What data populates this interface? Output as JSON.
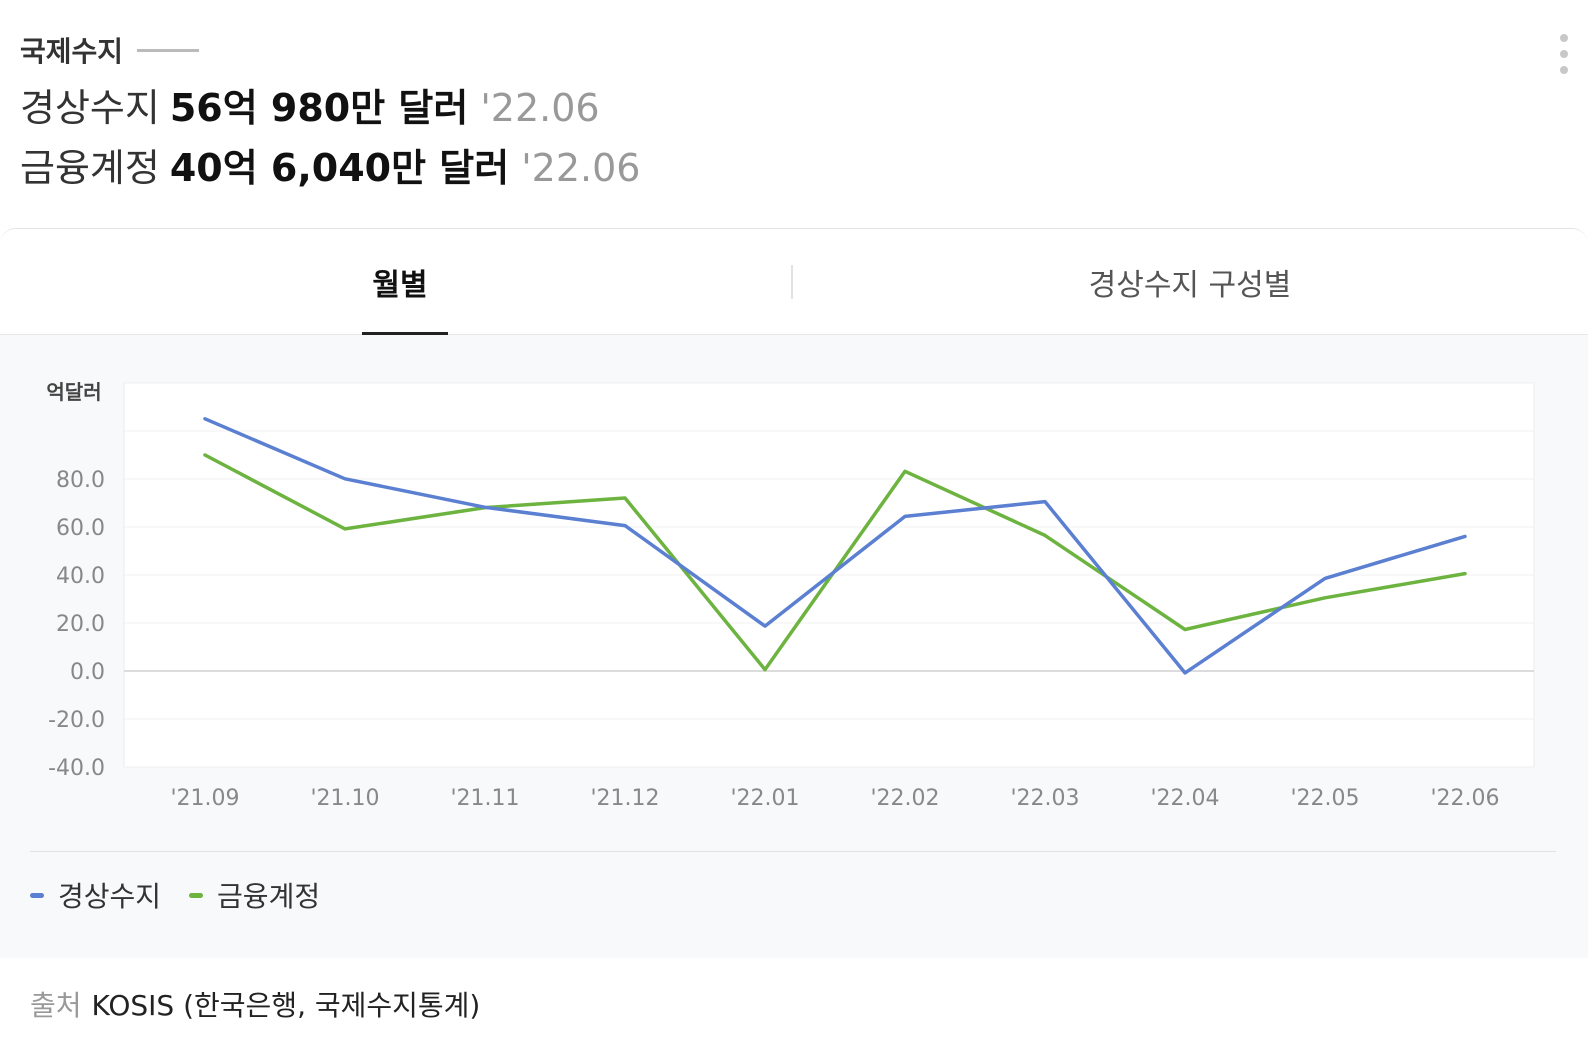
{
  "header": {
    "section_title": "국제수지",
    "stats": [
      {
        "label": "경상수지",
        "value": "56억 980만 달러",
        "date": "'22.06"
      },
      {
        "label": "금융계정",
        "value": "40억 6,040만 달러",
        "date": "'22.06"
      }
    ]
  },
  "tabs": [
    {
      "label": "월별",
      "active": true
    },
    {
      "label": "경상수지 구성별",
      "active": false
    }
  ],
  "chart_data": {
    "type": "line",
    "ylabel": "억달러",
    "x": [
      "'21.09",
      "'21.10",
      "'21.11",
      "'21.12",
      "'22.01",
      "'22.02",
      "'22.03",
      "'22.04",
      "'22.05",
      "'22.06"
    ],
    "yticks": [
      "80.0",
      "60.0",
      "40.0",
      "20.0",
      "0.0",
      "-20.0",
      "-40.0"
    ],
    "ylim": [
      -40,
      120
    ],
    "grid": true,
    "legend_position": "bottom-left",
    "series": [
      {
        "name": "경상수지",
        "color": "#5b7fd1",
        "values": [
          105.1,
          80.1,
          68.2,
          60.6,
          18.7,
          64.4,
          70.6,
          -0.8,
          38.6,
          56.1
        ]
      },
      {
        "name": "금융계정",
        "color": "#6cb33f",
        "values": [
          90.0,
          59.2,
          68.1,
          72.1,
          0.6,
          83.2,
          56.5,
          17.3,
          30.5,
          40.6
        ]
      }
    ]
  },
  "footer": {
    "source_label": "출처",
    "source_text": "KOSIS (한국은행, 국제수지통계)"
  }
}
